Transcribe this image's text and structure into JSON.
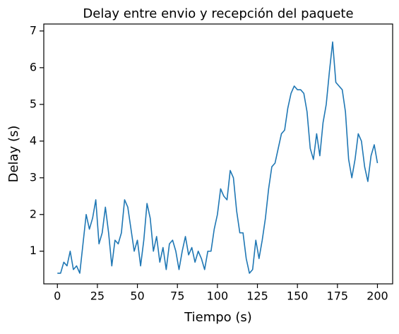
{
  "chart_data": {
    "type": "line",
    "title": "Delay entre envio y recepción del paquete",
    "xlabel": "Tiempo (s)",
    "ylabel": "Delay (s)",
    "xlim": [
      -8.5,
      209.5
    ],
    "ylim": [
      0.11,
      7.19
    ],
    "xticks": [
      0,
      25,
      50,
      75,
      100,
      125,
      150,
      175,
      200
    ],
    "yticks": [
      1,
      2,
      3,
      4,
      5,
      6,
      7
    ],
    "x": [
      0,
      2,
      4,
      6,
      8,
      10,
      12,
      14,
      16,
      18,
      20,
      22,
      24,
      26,
      28,
      30,
      32,
      34,
      36,
      38,
      40,
      42,
      44,
      46,
      48,
      50,
      52,
      54,
      56,
      58,
      60,
      62,
      64,
      66,
      68,
      70,
      72,
      74,
      76,
      78,
      80,
      82,
      84,
      86,
      88,
      90,
      92,
      94,
      96,
      98,
      100,
      102,
      104,
      106,
      108,
      110,
      112,
      114,
      116,
      118,
      120,
      122,
      124,
      126,
      128,
      130,
      132,
      134,
      136,
      138,
      140,
      142,
      144,
      146,
      148,
      150,
      152,
      154,
      156,
      158,
      160,
      162,
      164,
      166,
      168,
      170,
      172,
      174,
      176,
      178,
      180,
      182,
      184,
      186,
      188,
      190,
      192,
      194,
      196,
      198,
      200
    ],
    "series": [
      {
        "color": "#1f77b4",
        "values": [
          0.4,
          0.4,
          0.7,
          0.6,
          1.0,
          0.5,
          0.6,
          0.4,
          1.2,
          2.0,
          1.6,
          1.9,
          2.4,
          1.2,
          1.5,
          2.2,
          1.5,
          0.6,
          1.3,
          1.2,
          1.5,
          2.4,
          2.2,
          1.6,
          1.0,
          1.3,
          0.6,
          1.3,
          2.3,
          1.9,
          1.0,
          1.4,
          0.7,
          1.1,
          0.5,
          1.2,
          1.3,
          1.0,
          0.5,
          1.0,
          1.4,
          0.9,
          1.1,
          0.7,
          1.0,
          0.8,
          0.5,
          1.0,
          1.0,
          1.6,
          2.0,
          2.7,
          2.5,
          2.4,
          3.2,
          3.0,
          2.1,
          1.5,
          1.5,
          0.8,
          0.4,
          0.5,
          1.3,
          0.8,
          1.3,
          1.9,
          2.7,
          3.3,
          3.4,
          3.8,
          4.2,
          4.3,
          4.9,
          5.3,
          5.5,
          5.4,
          5.4,
          5.3,
          4.8,
          3.8,
          3.5,
          4.2,
          3.6,
          4.5,
          5.0,
          5.9,
          6.7,
          5.6,
          5.5,
          5.4,
          4.8,
          3.5,
          3.0,
          3.5,
          4.2,
          4.0,
          3.3,
          2.9,
          3.6,
          3.9,
          3.4
        ]
      }
    ]
  }
}
